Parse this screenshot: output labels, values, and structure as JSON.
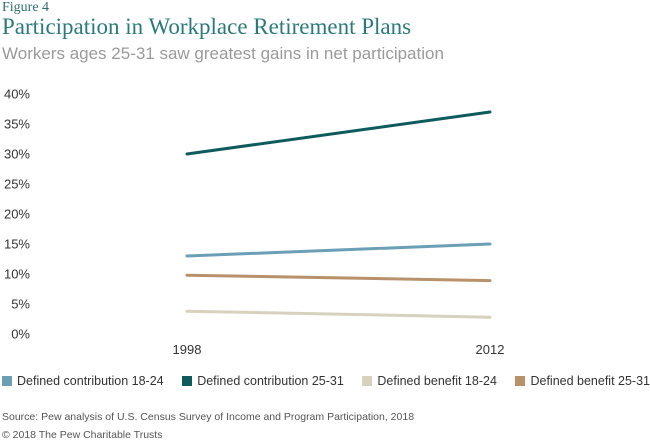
{
  "figure_label": "Figure 4",
  "title": "Participation in Workplace Retirement Plans",
  "subtitle": "Workers ages 25-31 saw greatest gains in net participation",
  "source": "Source: Pew analysis of U.S. Census Survey of Income and Program Participation, 2018",
  "copyright": "© 2018 The Pew Charitable Trusts",
  "chart_data": {
    "type": "line",
    "x": [
      "1998",
      "2012"
    ],
    "ylim": [
      0,
      40
    ],
    "yticks": [
      "0%",
      "5%",
      "10%",
      "15%",
      "20%",
      "25%",
      "30%",
      "35%",
      "40%"
    ],
    "ytick_values": [
      0,
      5,
      10,
      15,
      20,
      25,
      30,
      35,
      40
    ],
    "grid": false,
    "legend_position": "bottom",
    "series": [
      {
        "name": "Defined contribution 18-24",
        "values": [
          13,
          15
        ],
        "color": "#6a9fb5"
      },
      {
        "name": "Defined contribution 25-31",
        "values": [
          30,
          37
        ],
        "color": "#0e5b5e"
      },
      {
        "name": "Defined benefit 18-24",
        "values": [
          3.8,
          2.8
        ],
        "color": "#d6d2bd"
      },
      {
        "name": "Defined benefit 25-31",
        "values": [
          9.8,
          8.9
        ],
        "color": "#b8916a"
      }
    ]
  }
}
